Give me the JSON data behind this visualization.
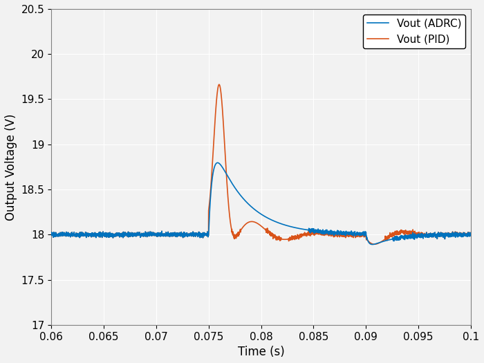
{
  "title": "",
  "xlabel": "Time (s)",
  "ylabel": "Output Voltage (V)",
  "xlim": [
    0.06,
    0.1
  ],
  "ylim": [
    17.0,
    20.5
  ],
  "xticks": [
    0.06,
    0.065,
    0.07,
    0.075,
    0.08,
    0.085,
    0.09,
    0.095,
    0.1
  ],
  "yticks": [
    17.0,
    17.5,
    18.0,
    18.5,
    19.0,
    19.5,
    20.0,
    20.5
  ],
  "adrc_color": "#0072BD",
  "pid_color": "#D95319",
  "legend_labels": [
    "Vout (ADRC)",
    "Vout (PID)"
  ],
  "steady_state": 18.0,
  "disturbance1_time": 0.075,
  "disturbance2_time": 0.09,
  "background_color": "#f2f2f2",
  "grid_color": "#ffffff",
  "linewidth": 1.2
}
